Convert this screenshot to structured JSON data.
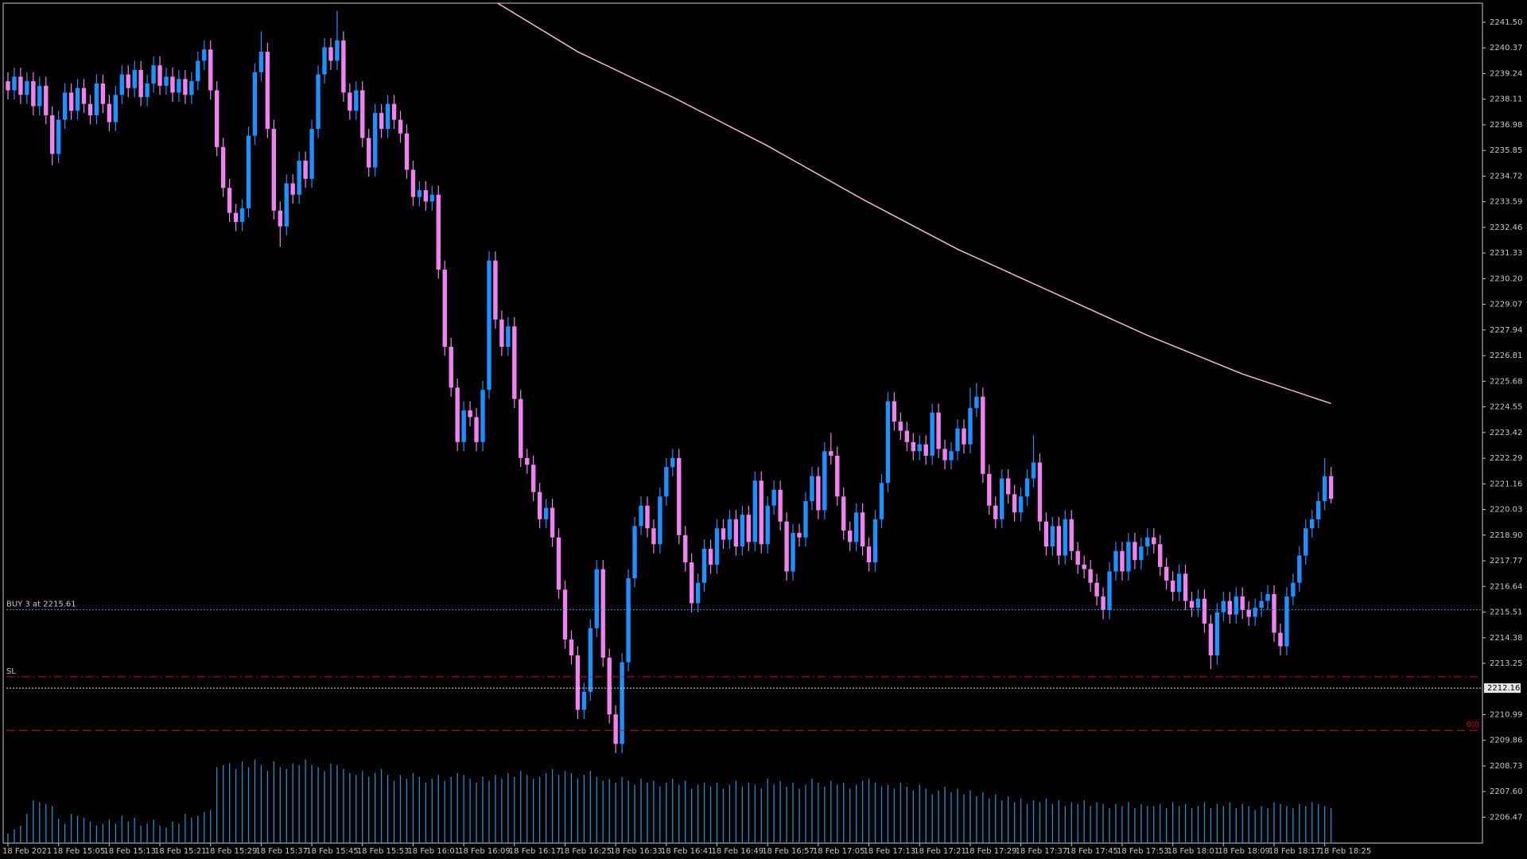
{
  "chart_data": {
    "type": "candlestick",
    "up_color": "#1e90ff",
    "down_color": "#ee82ee",
    "ma_color": "#f4bccb",
    "volume_color": "#1e8fd0",
    "ylim": [
      2205.33,
      2242.34
    ],
    "yticks": [
      {
        "value": 2241.5,
        "label": "2241.50"
      },
      2240.37,
      2239.24,
      2238.11,
      2236.98,
      2235.85,
      2234.72,
      2233.59,
      2232.46,
      2231.33,
      {
        "value": 2230.2,
        "label": "2230.20"
      },
      2229.07,
      2227.94,
      2226.81,
      2225.68,
      2224.55,
      2223.42,
      2222.29,
      2221.16,
      2220.03,
      {
        "value": 2218.9,
        "label": "2218.90"
      },
      2217.77,
      2216.64,
      2215.51,
      2214.38,
      2213.25,
      2210.99,
      2209.86,
      2208.73,
      {
        "value": 2207.6,
        "label": "2207.60"
      },
      2206.47
    ],
    "categories": [
      "18 Feb 2021",
      null,
      null,
      null,
      null,
      null,
      null,
      null,
      "18 Feb 15:05",
      null,
      null,
      null,
      null,
      null,
      null,
      null,
      "18 Feb 15:13",
      null,
      null,
      null,
      null,
      null,
      null,
      null,
      "18 Feb 15:21",
      null,
      null,
      null,
      null,
      null,
      null,
      null,
      "18 Feb 15:29",
      null,
      null,
      null,
      null,
      null,
      null,
      null,
      "18 Feb 15:37",
      null,
      null,
      null,
      null,
      null,
      null,
      null,
      "18 Feb 15:45",
      null,
      null,
      null,
      null,
      null,
      null,
      null,
      "18 Feb 15:53",
      null,
      null,
      null,
      null,
      null,
      null,
      null,
      "18 Feb 16:01",
      null,
      null,
      null,
      null,
      null,
      null,
      null,
      "18 Feb 16:09",
      null,
      null,
      null,
      null,
      null,
      null,
      null,
      "18 Feb 16:17",
      null,
      null,
      null,
      null,
      null,
      null,
      null,
      "18 Feb 16:25",
      null,
      null,
      null,
      null,
      null,
      null,
      null,
      "18 Feb 16:33",
      null,
      null,
      null,
      null,
      null,
      null,
      null,
      "18 Feb 16:41",
      null,
      null,
      null,
      null,
      null,
      null,
      null,
      "18 Feb 16:49",
      null,
      null,
      null,
      null,
      null,
      null,
      null,
      "18 Feb 16:57",
      null,
      null,
      null,
      null,
      null,
      null,
      null,
      "18 Feb 17:05",
      null,
      null,
      null,
      null,
      null,
      null,
      null,
      "18 Feb 17:13",
      null,
      null,
      null,
      null,
      null,
      null,
      null,
      "18 Feb 17:21",
      null,
      null,
      null,
      null,
      null,
      null,
      null,
      "18 Feb 17:29",
      null,
      null,
      null,
      null,
      null,
      null,
      null,
      "18 Feb 17:37",
      null,
      null,
      null,
      null,
      null,
      null,
      null,
      "18 Feb 17:45",
      null,
      null,
      null,
      null,
      null,
      null,
      null,
      "18 Feb 17:53",
      null,
      null,
      null,
      null,
      null,
      null,
      null,
      "18 Feb 18:01",
      null,
      null,
      null,
      null,
      null,
      null,
      null,
      "18 Feb 18:09",
      null,
      null,
      null,
      null,
      null,
      null,
      null,
      "18 Feb 18:17",
      null,
      null,
      null,
      null,
      null,
      null,
      null,
      "18 Feb 18:25",
      null
    ],
    "open": [
      2238.9,
      2238.5,
      2239.1,
      2238.3,
      2238.9,
      2237.8,
      2238.7,
      2237.4,
      2235.7,
      2237.2,
      2238.4,
      2237.6,
      2238.6,
      2237.9,
      2237.4,
      2238.8,
      2237.9,
      2237.1,
      2238.3,
      2239.2,
      2238.6,
      2239.4,
      2238.2,
      2238.8,
      2239.6,
      2238.7,
      2239.1,
      2238.4,
      2239.0,
      2238.3,
      2238.9,
      2239.8,
      2240.3,
      2238.5,
      2236.0,
      2234.2,
      2233.1,
      2232.7,
      2233.3,
      2236.5,
      2239.3,
      2240.2,
      2236.8,
      2233.2,
      2232.5,
      2234.4,
      2233.9,
      2235.4,
      2234.6,
      2236.8,
      2239.2,
      2240.4,
      2239.8,
      2240.7,
      2238.4,
      2237.6,
      2238.5,
      2236.4,
      2235.1,
      2237.5,
      2236.8,
      2237.9,
      2237.2,
      2236.6,
      2235.0,
      2233.8,
      2234.1,
      2233.6,
      2233.9,
      2230.6,
      2227.2,
      2225.4,
      2223.0,
      2224.4,
      2224.1,
      2223.0,
      2225.3,
      2231.0,
      2228.4,
      2227.2,
      2228.1,
      2224.9,
      2222.3,
      2222.0,
      2220.8,
      2219.6,
      2220.1,
      2218.8,
      2216.5,
      2214.3,
      2213.6,
      2211.2,
      2212.0,
      2214.8,
      2217.4,
      2213.5,
      2211.0,
      2209.7,
      2213.3,
      2217.0,
      2219.3,
      2220.2,
      2219.2,
      2218.5,
      2220.6,
      2221.9,
      2222.3,
      2218.9,
      2217.7,
      2215.9,
      2216.8,
      2218.3,
      2217.6,
      2219.2,
      2218.7,
      2219.6,
      2218.4,
      2219.8,
      2218.6,
      2221.3,
      2218.5,
      2220.2,
      2220.9,
      2219.5,
      2217.3,
      2219.0,
      2218.8,
      2220.4,
      2221.5,
      2220.0,
      2222.6,
      2222.4,
      2220.6,
      2219.1,
      2218.6,
      2219.9,
      2218.4,
      2217.7,
      2219.6,
      2221.2,
      2224.8,
      2223.9,
      2223.5,
      2223.0,
      2222.6,
      2222.9,
      2222.4,
      2224.3,
      2222.7,
      2222.2,
      2222.6,
      2223.6,
      2222.9,
      2224.5,
      2225.0,
      2221.6,
      2220.2,
      2219.6,
      2221.4,
      2220.7,
      2219.9,
      2220.6,
      2221.4,
      2222.1,
      2219.5,
      2218.4,
      2219.3,
      2218.0,
      2219.6,
      2218.2,
      2217.6,
      2217.4,
      2216.8,
      2216.2,
      2215.6,
      2217.3,
      2218.2,
      2217.3,
      2218.6,
      2217.8,
      2218.4,
      2218.8,
      2218.5,
      2217.5,
      2216.9,
      2216.4,
      2217.2,
      2216.0,
      2215.7,
      2216.1,
      2215.0,
      2213.6,
      2215.5,
      2216.0,
      2215.4,
      2216.2,
      2215.6,
      2215.3,
      2215.7,
      2216.0,
      2216.3,
      2214.6,
      2214.0,
      2216.2,
      2216.8,
      2218.0,
      2219.2,
      2219.6,
      2220.4,
      2221.5
    ],
    "high": [
      2239.3,
      2239.5,
      2239.5,
      2239.3,
      2239.3,
      2239.1,
      2239.1,
      2237.8,
      2237.6,
      2238.8,
      2238.8,
      2239.0,
      2239.0,
      2238.3,
      2239.2,
      2239.2,
      2238.3,
      2238.7,
      2239.6,
      2239.6,
      2239.8,
      2239.8,
      2239.2,
      2240.0,
      2240.0,
      2239.5,
      2239.5,
      2239.4,
      2239.4,
      2239.3,
      2240.2,
      2240.7,
      2240.7,
      2238.9,
      2236.4,
      2234.6,
      2233.5,
      2233.7,
      2236.9,
      2239.7,
      2241.1,
      2240.6,
      2237.2,
      2233.6,
      2234.8,
      2234.8,
      2235.8,
      2235.8,
      2237.2,
      2239.6,
      2240.8,
      2240.8,
      2242.0,
      2241.1,
      2238.8,
      2238.9,
      2238.9,
      2236.8,
      2237.9,
      2237.9,
      2238.3,
      2238.3,
      2237.6,
      2237.0,
      2235.4,
      2234.5,
      2234.5,
      2234.3,
      2234.3,
      2231.0,
      2227.6,
      2225.8,
      2224.8,
      2224.8,
      2224.5,
      2225.7,
      2231.4,
      2231.4,
      2228.8,
      2228.5,
      2228.5,
      2225.3,
      2222.7,
      2222.4,
      2221.2,
      2220.5,
      2220.5,
      2219.2,
      2216.9,
      2214.7,
      2214.0,
      2212.4,
      2215.2,
      2217.8,
      2217.8,
      2213.9,
      2211.4,
      2213.7,
      2217.4,
      2219.7,
      2220.6,
      2220.6,
      2219.6,
      2221.0,
      2222.3,
      2222.7,
      2222.7,
      2219.3,
      2218.1,
      2217.2,
      2218.7,
      2218.7,
      2219.6,
      2219.6,
      2220.0,
      2220.0,
      2220.2,
      2220.2,
      2221.7,
      2221.7,
      2220.6,
      2221.3,
      2221.3,
      2219.9,
      2219.4,
      2219.4,
      2220.8,
      2221.9,
      2221.9,
      2223.0,
      2223.4,
      2222.8,
      2221.0,
      2219.5,
      2220.3,
      2220.3,
      2218.8,
      2220.0,
      2221.6,
      2225.2,
      2225.2,
      2224.3,
      2223.9,
      2223.4,
      2223.3,
      2223.3,
      2224.7,
      2224.7,
      2223.1,
      2223.0,
      2224.0,
      2224.0,
      2225.4,
      2225.6,
      2225.4,
      2222.0,
      2220.6,
      2221.8,
      2221.8,
      2221.1,
      2221.0,
      2221.8,
      2223.3,
      2222.5,
      2219.9,
      2219.7,
      2219.7,
      2220.0,
      2220.0,
      2218.6,
      2218.0,
      2217.8,
      2217.2,
      2216.6,
      2217.7,
      2218.6,
      2218.6,
      2219.0,
      2219.0,
      2218.8,
      2219.2,
      2219.2,
      2218.9,
      2217.9,
      2217.3,
      2217.6,
      2217.6,
      2216.4,
      2216.5,
      2216.5,
      2215.4,
      2215.9,
      2216.4,
      2216.4,
      2216.6,
      2216.6,
      2216.0,
      2216.1,
      2216.4,
      2216.7,
      2216.7,
      2215.0,
      2216.6,
      2217.2,
      2218.4,
      2219.6,
      2220.0,
      2220.8,
      2222.3,
      2221.9
    ],
    "low": [
      2238.1,
      2238.1,
      2237.9,
      2237.9,
      2237.4,
      2237.4,
      2237.0,
      2235.2,
      2235.3,
      2236.8,
      2237.2,
      2237.2,
      2237.5,
      2237.0,
      2237.0,
      2237.5,
      2236.7,
      2236.7,
      2237.9,
      2238.2,
      2238.2,
      2237.8,
      2237.8,
      2238.4,
      2238.3,
      2238.3,
      2238.0,
      2238.0,
      2237.9,
      2237.9,
      2238.5,
      2239.4,
      2238.1,
      2235.6,
      2233.8,
      2232.7,
      2232.3,
      2232.3,
      2232.9,
      2236.1,
      2238.9,
      2236.4,
      2232.8,
      2231.6,
      2232.1,
      2233.5,
      2233.5,
      2234.2,
      2234.2,
      2236.4,
      2238.8,
      2239.4,
      2239.4,
      2238.0,
      2237.2,
      2237.2,
      2236.0,
      2234.7,
      2234.7,
      2236.4,
      2236.4,
      2236.8,
      2236.2,
      2234.6,
      2233.4,
      2233.4,
      2233.2,
      2233.2,
      2230.2,
      2226.8,
      2225.0,
      2222.6,
      2222.6,
      2223.7,
      2222.6,
      2222.6,
      2224.9,
      2228.0,
      2226.8,
      2226.8,
      2224.5,
      2221.9,
      2221.6,
      2220.4,
      2219.2,
      2219.2,
      2218.4,
      2216.1,
      2213.9,
      2213.2,
      2210.8,
      2210.8,
      2211.6,
      2214.4,
      2213.1,
      2210.6,
      2209.3,
      2209.3,
      2212.9,
      2216.6,
      2218.9,
      2218.8,
      2218.1,
      2218.1,
      2220.2,
      2221.5,
      2218.5,
      2217.3,
      2215.5,
      2215.5,
      2216.4,
      2217.2,
      2217.2,
      2218.3,
      2218.3,
      2218.0,
      2218.0,
      2218.2,
      2218.2,
      2218.1,
      2218.1,
      2219.8,
      2219.1,
      2216.9,
      2216.9,
      2218.4,
      2218.4,
      2220.0,
      2219.6,
      2219.6,
      2222.0,
      2220.2,
      2218.7,
      2218.2,
      2218.2,
      2218.0,
      2217.3,
      2217.3,
      2219.2,
      2220.8,
      2223.5,
      2223.1,
      2222.6,
      2222.2,
      2222.2,
      2222.0,
      2222.0,
      2222.3,
      2221.8,
      2221.8,
      2222.2,
      2222.5,
      2222.5,
      2224.1,
      2221.2,
      2219.8,
      2219.2,
      2219.2,
      2220.3,
      2219.5,
      2219.5,
      2220.2,
      2221.0,
      2219.1,
      2218.0,
      2218.0,
      2217.6,
      2217.6,
      2217.8,
      2217.2,
      2217.0,
      2216.4,
      2215.8,
      2215.2,
      2215.2,
      2216.9,
      2216.9,
      2216.9,
      2217.4,
      2217.4,
      2218.0,
      2218.1,
      2217.1,
      2216.5,
      2216.0,
      2216.0,
      2215.6,
      2215.3,
      2215.3,
      2214.6,
      2213.0,
      2213.2,
      2215.1,
      2215.0,
      2215.0,
      2215.2,
      2214.9,
      2214.9,
      2215.3,
      2215.6,
      2214.2,
      2213.6,
      2213.6,
      2215.8,
      2216.4,
      2217.6,
      2218.8,
      2219.2,
      2220.0,
      2220.3
    ],
    "close": [
      2238.5,
      2239.1,
      2238.3,
      2238.9,
      2237.8,
      2238.7,
      2237.4,
      2235.7,
      2237.2,
      2238.4,
      2237.6,
      2238.6,
      2237.9,
      2237.4,
      2238.8,
      2237.9,
      2237.1,
      2238.3,
      2239.2,
      2238.6,
      2239.4,
      2238.2,
      2238.8,
      2239.6,
      2238.7,
      2239.1,
      2238.4,
      2239.0,
      2238.3,
      2238.9,
      2239.8,
      2240.3,
      2238.5,
      2236.0,
      2234.2,
      2233.1,
      2232.7,
      2233.3,
      2236.5,
      2239.3,
      2240.2,
      2236.8,
      2233.2,
      2232.5,
      2234.4,
      2233.9,
      2235.4,
      2234.6,
      2236.8,
      2239.2,
      2240.4,
      2239.8,
      2240.7,
      2238.4,
      2237.6,
      2238.5,
      2236.4,
      2235.1,
      2237.5,
      2236.8,
      2237.9,
      2237.2,
      2236.6,
      2235.0,
      2233.8,
      2234.1,
      2233.6,
      2233.9,
      2230.6,
      2227.2,
      2225.4,
      2223.0,
      2224.4,
      2224.1,
      2223.0,
      2225.3,
      2231.0,
      2228.4,
      2227.2,
      2228.1,
      2224.9,
      2222.3,
      2222.0,
      2220.8,
      2219.6,
      2220.1,
      2218.8,
      2216.5,
      2214.3,
      2213.6,
      2211.2,
      2212.0,
      2214.8,
      2217.4,
      2213.5,
      2211.0,
      2209.7,
      2213.3,
      2217.0,
      2219.3,
      2220.2,
      2219.2,
      2218.5,
      2220.6,
      2221.9,
      2222.3,
      2218.9,
      2217.7,
      2215.9,
      2216.8,
      2218.3,
      2217.6,
      2219.2,
      2218.7,
      2219.6,
      2218.4,
      2219.8,
      2218.6,
      2221.3,
      2218.5,
      2220.2,
      2220.9,
      2219.5,
      2217.3,
      2219.0,
      2218.8,
      2220.4,
      2221.5,
      2220.0,
      2222.6,
      2222.4,
      2220.6,
      2219.1,
      2218.6,
      2219.9,
      2218.4,
      2217.7,
      2219.6,
      2221.2,
      2224.8,
      2223.9,
      2223.5,
      2223.0,
      2222.6,
      2222.9,
      2222.4,
      2224.3,
      2222.7,
      2222.2,
      2222.6,
      2223.6,
      2222.9,
      2224.5,
      2225.0,
      2221.6,
      2220.2,
      2219.6,
      2221.4,
      2220.7,
      2219.9,
      2220.6,
      2221.4,
      2222.1,
      2219.5,
      2218.4,
      2219.3,
      2218.0,
      2219.6,
      2218.2,
      2217.6,
      2217.4,
      2216.8,
      2216.2,
      2215.6,
      2217.3,
      2218.2,
      2217.3,
      2218.6,
      2217.8,
      2218.4,
      2218.8,
      2218.5,
      2217.5,
      2216.9,
      2216.4,
      2217.2,
      2216.0,
      2215.7,
      2216.1,
      2215.0,
      2213.6,
      2215.5,
      2216.0,
      2215.4,
      2216.2,
      2215.6,
      2215.3,
      2215.7,
      2216.0,
      2216.3,
      2214.6,
      2214.0,
      2216.2,
      2216.8,
      2218.0,
      2219.2,
      2219.6,
      2220.4,
      2221.5,
      2220.5
    ],
    "volumes": [
      10,
      14,
      18,
      30,
      44,
      42,
      40,
      38,
      25,
      20,
      30,
      28,
      26,
      22,
      18,
      20,
      24,
      20,
      28,
      22,
      26,
      18,
      20,
      24,
      18,
      16,
      22,
      20,
      30,
      26,
      28,
      32,
      34,
      78,
      80,
      82,
      76,
      84,
      78,
      86,
      80,
      74,
      84,
      78,
      76,
      82,
      80,
      86,
      80,
      78,
      74,
      82,
      80,
      76,
      72,
      70,
      74,
      68,
      72,
      76,
      70,
      64,
      70,
      66,
      72,
      68,
      62,
      66,
      70,
      64,
      68,
      72,
      70,
      66,
      62,
      68,
      64,
      70,
      66,
      72,
      68,
      74,
      70,
      66,
      68,
      72,
      76,
      70,
      74,
      72,
      66,
      70,
      74,
      68,
      64,
      66,
      62,
      68,
      64,
      60,
      66,
      62,
      64,
      58,
      62,
      66,
      60,
      64,
      56,
      60,
      62,
      58,
      62,
      56,
      60,
      64,
      58,
      62,
      60,
      56,
      66,
      60,
      64,
      58,
      62,
      56,
      60,
      66,
      62,
      58,
      64,
      60,
      62,
      56,
      60,
      64,
      66,
      62,
      58,
      60,
      56,
      62,
      58,
      54,
      60,
      56,
      50,
      54,
      58,
      52,
      56,
      50,
      54,
      48,
      52,
      46,
      50,
      44,
      48,
      42,
      46,
      40,
      44,
      42,
      46,
      40,
      44,
      38,
      42,
      40,
      44,
      38,
      42,
      40,
      36,
      40,
      38,
      42,
      36,
      40,
      38,
      38,
      40,
      36,
      42,
      38,
      40,
      36,
      38,
      42,
      36,
      40,
      38,
      42,
      36,
      40,
      38,
      34,
      38,
      36,
      42,
      40,
      38,
      36,
      40,
      38,
      42,
      40,
      38,
      36
    ],
    "ma": {
      "x": [
        77,
        90,
        105,
        120,
        135,
        150,
        165,
        180,
        195,
        209
      ],
      "values": [
        2242.4,
        2240.2,
        2238.2,
        2236.05,
        2233.7,
        2231.5,
        2229.6,
        2227.7,
        2226.0,
        2224.7
      ]
    },
    "levels": [
      {
        "label": "BUY 3 at 2215.61",
        "value": 2215.61,
        "color": "#2a9fd6",
        "dash": "2 2",
        "label_side": "left"
      },
      {
        "label": "SL",
        "value": 2212.66,
        "color": "#d01010",
        "dash": "10 4 2 4",
        "label_side": "left"
      },
      {
        "value": 2212.16,
        "color": "#e0e0e0",
        "dash": "2 2"
      },
      {
        "label": "0|0",
        "value": 2210.3,
        "color": "#d01010",
        "dash": "10 6",
        "label_side": "right"
      }
    ]
  }
}
